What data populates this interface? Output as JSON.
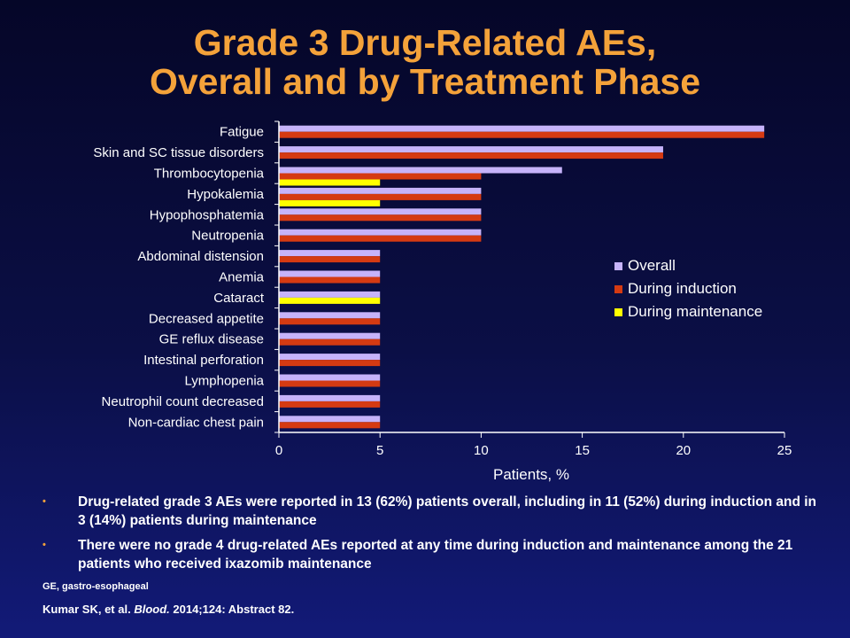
{
  "title": {
    "line1": "Grade 3 Drug-Related AEs,",
    "line2": "Overall and by Treatment Phase"
  },
  "chart_data": {
    "type": "bar",
    "orientation": "horizontal",
    "categories": [
      "Fatigue",
      "Skin and SC tissue disorders",
      "Thrombocytopenia",
      "Hypokalemia",
      "Hypophosphatemia",
      "Neutropenia",
      "Abdominal distension",
      "Anemia",
      "Cataract",
      "Decreased appetite",
      "GE reflux disease",
      "Intestinal perforation",
      "Lymphopenia",
      "Neutrophil count decreased",
      "Non-cardiac chest pain"
    ],
    "series": [
      {
        "name": "Overall",
        "color": "#c6b3fa",
        "values": [
          24,
          19,
          14,
          10,
          10,
          10,
          5,
          5,
          5,
          5,
          5,
          5,
          5,
          5,
          5
        ]
      },
      {
        "name": "During induction",
        "color": "#d53a12",
        "values": [
          24,
          19,
          10,
          10,
          10,
          10,
          5,
          5,
          0,
          5,
          5,
          5,
          5,
          5,
          5
        ]
      },
      {
        "name": "During maintenance",
        "color": "#ffff00",
        "values": [
          0,
          0,
          5,
          5,
          0,
          0,
          0,
          0,
          5,
          0,
          0,
          0,
          0,
          0,
          0
        ]
      }
    ],
    "xlabel": "Patients, %",
    "xlim": [
      0,
      25
    ],
    "xticks": [
      0,
      5,
      10,
      15,
      20,
      25
    ],
    "grid": false,
    "legend_position": "right"
  },
  "bullets": [
    "Drug-related grade 3 AEs were reported in 13 (62%) patients overall, including in 11 (52%) during induction and in 3 (14%) patients during maintenance",
    "There were no grade 4 drug-related AEs reported at any time during induction and maintenance among the 21 patients who received ixazomib maintenance"
  ],
  "bullet_marker": "•",
  "footnote": "GE, gastro-esophageal",
  "citation": {
    "authors": "Kumar SK, et al.",
    "journal": "Blood.",
    "rest": "2014;124: Abstract 82."
  }
}
